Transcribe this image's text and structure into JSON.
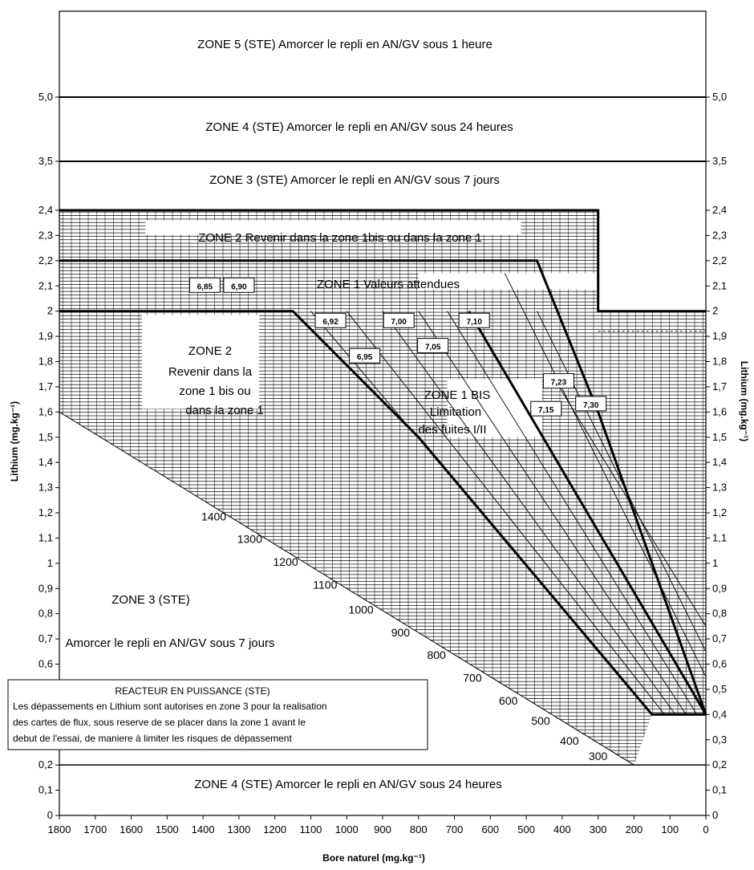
{
  "chart_data": {
    "type": "line",
    "title": "",
    "xlabel": "Bore naturel (mg.kg⁻¹)",
    "ylabel_left": "Lithium (mg.kg⁻¹)",
    "ylabel_right": "Lithium (mg.kg⁻¹)",
    "xlim": [
      1800,
      0
    ],
    "ylim": [
      0,
      6.0
    ],
    "x_ticks": [
      "1800",
      "1700",
      "1600",
      "1500",
      "1400",
      "1300",
      "1200",
      "1100",
      "1000",
      "900",
      "800",
      "700",
      "600",
      "500",
      "400",
      "300",
      "200",
      "100",
      "0"
    ],
    "y_ticks": [
      "0",
      "0,1",
      "0,2",
      "0,3",
      "0,4",
      "0,5",
      "0,6",
      "0,7",
      "0,8",
      "0,9",
      "1",
      "1,1",
      "1,2",
      "1,3",
      "1,4",
      "1,5",
      "1,6",
      "1,7",
      "1,8",
      "1,9",
      "2",
      "2,1",
      "2,2",
      "2,3",
      "2,4",
      "3,5",
      "5,0"
    ],
    "y_ticks_right": [
      "0",
      "0,1",
      "0,2",
      "0,3",
      "0,4",
      "0,5",
      "0,6",
      "0,7",
      "0,8",
      "0,9",
      "1",
      "1,1",
      "1,2",
      "1,3",
      "1,4",
      "1,5",
      "1,6",
      "1,7",
      "1,8",
      "1,9",
      "2",
      "2,1",
      "2,2",
      "2,3",
      "2,4",
      "3,5",
      "5,0"
    ],
    "grid": true,
    "zones": [
      {
        "text": "ZONE 5 (STE)  Amorcer le repli en AN/GV sous 1 heure",
        "y_range": [
          5.0,
          6.0
        ]
      },
      {
        "text": "ZONE 4  (STE)  Amorcer le repli en AN/GV sous 24 heures",
        "y_range": [
          3.5,
          5.0
        ]
      },
      {
        "text": "ZONE 3  (STE)   Amorcer le repli en AN/GV sous 7 jours",
        "y_range": [
          2.4,
          3.5
        ]
      },
      {
        "text": "ZONE 2  Revenir dans la zone 1bis ou dans la zone 1",
        "y_range": [
          2.2,
          2.4
        ]
      },
      {
        "text": "ZONE 1  Valeurs attendues",
        "y_range": [
          2.0,
          2.2
        ]
      },
      {
        "lines": [
          "ZONE 2",
          "Revenir dans la",
          "zone 1 bis ou",
          "dans la zone 1"
        ]
      },
      {
        "lines": [
          "ZONE 1 BIS",
          "Limitation",
          "des fuites I/II"
        ]
      },
      {
        "text": "ZONE 3  (STE)"
      },
      {
        "text": "Amorcer le repli en AN/GV sous 7 jours"
      },
      {
        "text": "ZONE 4  (STE)   Amorcer le repli en AN/GV sous 24 heures",
        "y_range": [
          0,
          0.2
        ]
      }
    ],
    "note": {
      "title": "REACTEUR EN PUISSANCE (STE)",
      "lines": [
        "Les dépassements en Lithium sont autorises en zone 3 pour la realisation",
        "des cartes de flux, sous reserve de se placer dans la zone 1 avant le",
        "debut de l'essai, de maniere à limiter les risques de dépassement"
      ]
    },
    "boundaries": [
      {
        "name": "zone1-top",
        "points": [
          [
            1800,
            2.2
          ],
          [
            470,
            2.2
          ],
          [
            300,
            1.6
          ],
          [
            0,
            0.4
          ]
        ],
        "bold": true
      },
      {
        "name": "zone1-bottom",
        "points": [
          [
            1800,
            2.0
          ],
          [
            1150,
            2.0
          ],
          [
            800,
            1.5
          ],
          [
            150,
            0.4
          ],
          [
            0,
            0.4
          ]
        ],
        "bold": true
      },
      {
        "name": "zone1bis-bottom",
        "points": [
          [
            660,
            2.0
          ],
          [
            0,
            0.4
          ]
        ],
        "bold": true
      },
      {
        "name": "zone3-diagonal",
        "points": [
          [
            1800,
            1.6
          ],
          [
            200,
            0.2
          ]
        ],
        "bold": false
      },
      {
        "name": "zone2-top-step",
        "points": [
          [
            1800,
            2.4
          ],
          [
            300,
            2.4
          ],
          [
            300,
            2.0
          ],
          [
            0,
            2.0
          ]
        ],
        "bold": true
      }
    ],
    "boron_iso_labels": [
      "1400",
      "1300",
      "1200",
      "1100",
      "1000",
      "900",
      "800",
      "700",
      "600",
      "500",
      "400",
      "300"
    ],
    "ph_labels": [
      "6,85",
      "6,90",
      "6,92",
      "6,95",
      "7,00",
      "7,05",
      "7,10",
      "7,15",
      "7,23",
      "7,30"
    ]
  }
}
